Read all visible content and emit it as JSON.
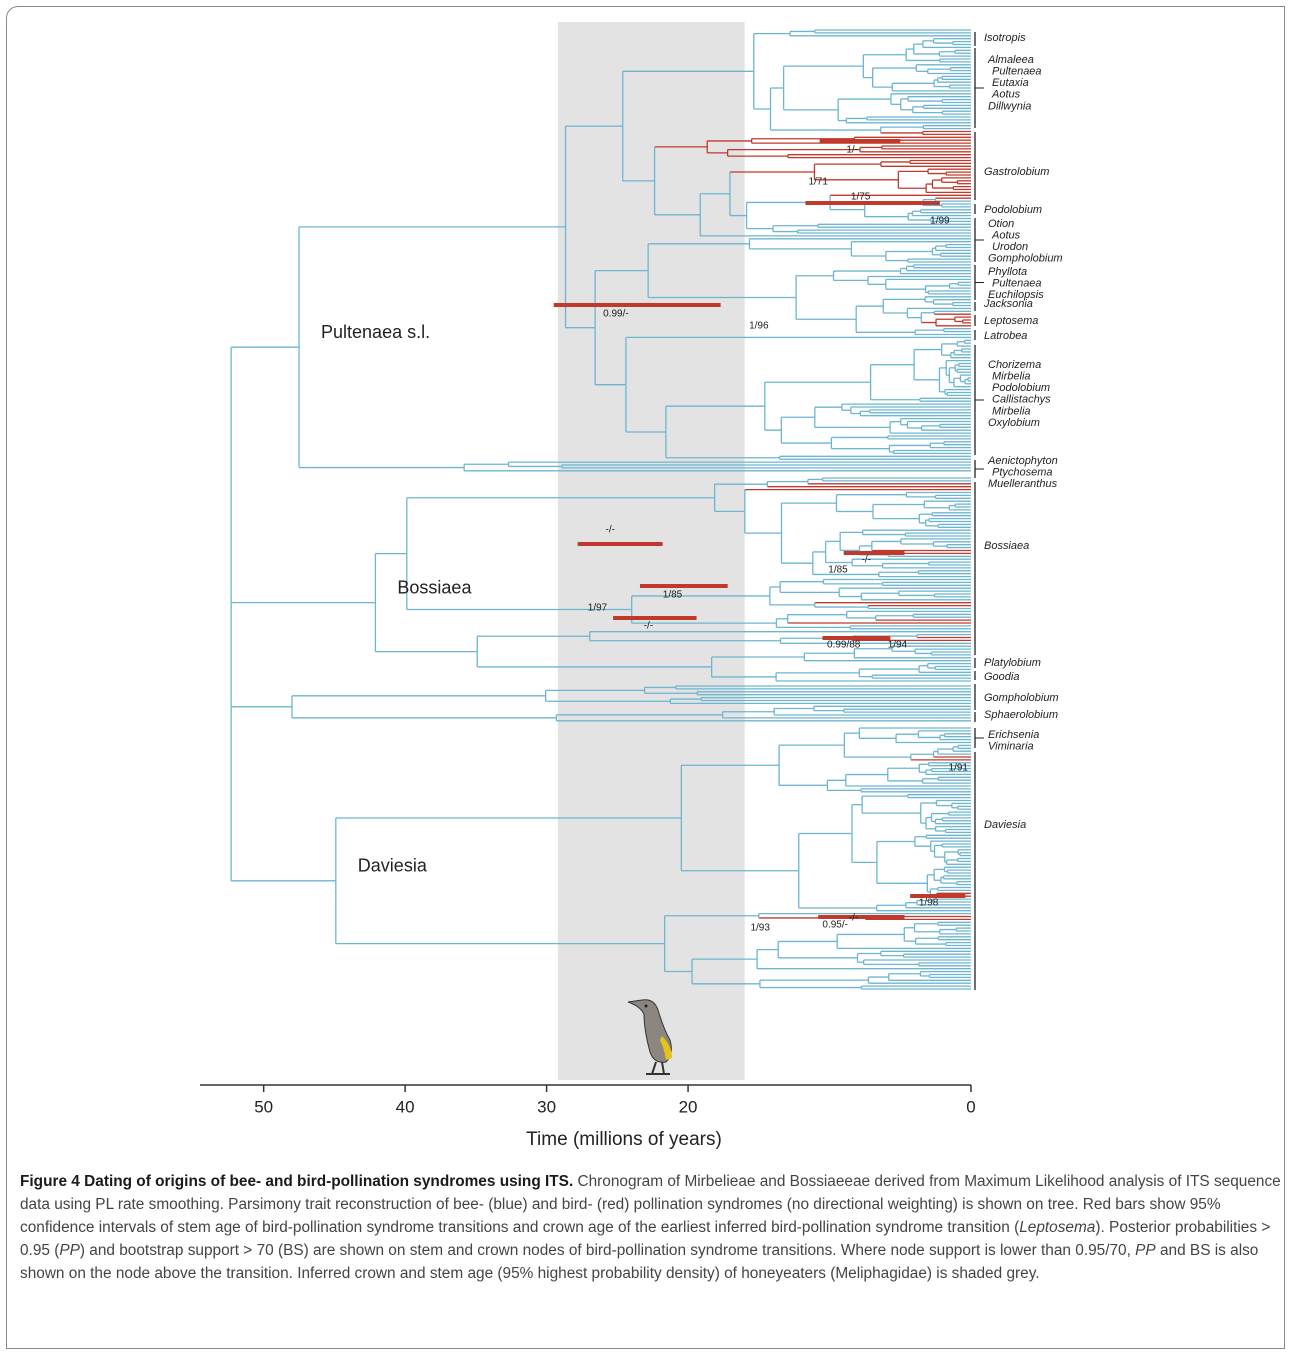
{
  "chart_data": {
    "type": "chronogram",
    "x_label": "Time (millions of years)",
    "xlim": [
      54.5,
      0
    ],
    "xticks": [
      50,
      40,
      30,
      20,
      0
    ],
    "shaded_interval": [
      29.2,
      16
    ],
    "root_age": 52.3,
    "clades": [
      {
        "name": "Pultenaea s.l.",
        "age": 47.5
      },
      {
        "name": "Bossiaea",
        "age": 42.1
      },
      {
        "name": null,
        "age": 48
      },
      {
        "name": "Daviesia",
        "age": 44.9
      }
    ],
    "taxa": [
      [
        "Isotropis"
      ],
      [
        "Almaleea",
        "Pultenaea",
        "Eutaxia",
        "Aotus",
        "Dillwynia"
      ],
      [
        "Gastrolobium"
      ],
      [
        "Podolobium"
      ],
      [
        "Otion",
        "Aotus",
        "Urodon",
        "Gompholobium"
      ],
      [
        "Phyllota",
        "Pultenaea",
        "Euchilopsis"
      ],
      [
        "Jacksonia"
      ],
      [
        "Leptosema"
      ],
      [
        "Latrobea"
      ],
      [
        "Chorizema",
        "Mirbelia",
        "Podolobium",
        "Callistachys",
        "Mirbelia",
        "Oxylobium"
      ],
      [
        "Aenictophyton",
        "Ptychosema",
        "Muelleranthus"
      ],
      [
        "Bossiaea"
      ],
      [
        "Platylobium"
      ],
      [
        "Goodia"
      ],
      [
        "Gompholobium"
      ],
      [
        "Sphaerolobium"
      ],
      [
        "Erichsenia",
        "Viminaria"
      ],
      [
        "Daviesia"
      ]
    ],
    "confidence_intervals": [
      [
        10.7,
        5.0
      ],
      [
        11.7,
        2.2
      ],
      [
        29.5,
        17.7
      ],
      [
        27.8,
        21.8
      ],
      [
        23.4,
        17.2
      ],
      [
        25.3,
        19.4
      ],
      [
        9.0,
        4.7
      ],
      [
        10.5,
        5.7
      ],
      [
        4.3,
        0.4
      ],
      [
        10.8,
        4.7
      ]
    ],
    "support": [
      {
        "label": "1/-",
        "age": 8.4
      },
      {
        "label": "1/71",
        "age": 10.8
      },
      {
        "label": "1/75",
        "age": 7.8
      },
      {
        "label": "1/99",
        "age": 2.2
      },
      {
        "label": "0.99/-",
        "age": 25.1
      },
      {
        "label": "1/96",
        "age": 15
      },
      {
        "label": "-/-",
        "age": 25.5
      },
      {
        "label": "1/85",
        "age": 9.4
      },
      {
        "label": "-/-",
        "age": 7.4
      },
      {
        "label": "1/85",
        "age": 21.1
      },
      {
        "label": "1/97",
        "age": 26.4
      },
      {
        "label": "-/-",
        "age": 22.8
      },
      {
        "label": "0.99/88",
        "age": 9
      },
      {
        "label": "1/94",
        "age": 5.2
      },
      {
        "label": "1/91",
        "age": 0.9
      },
      {
        "label": "1/98",
        "age": 3.0
      },
      {
        "label": "0.95/-",
        "age": 9.6
      },
      {
        "label": "-/-",
        "age": 8.3
      },
      {
        "label": "1/93",
        "age": 14.9
      }
    ]
  },
  "caption": {
    "title": "Figure 4 Dating of origins of bee- and bird-pollination syndromes using ITS.",
    "segments": [
      " Chronogram of Mirbelieae and Bossiaeeae derived from Maximum Likelihood analysis of ITS sequence data using PL rate smoothing. Parsimony trait reconstruction of bee- (blue) and bird- (red) pollination syndromes (no directional weighting) is shown on tree. Red bars show 95% confidence intervals of stem age of bird-pollination syndrome transitions and crown age of the earliest inferred bird-pollination syndrome transition (",
      {
        "text": "Leptosema",
        "italic": true
      },
      "). Posterior probabilities > 0.95 (",
      {
        "text": "PP",
        "italic": true
      },
      ") and bootstrap support > 70 (BS) are shown on stem and crown nodes of bird-pollination syndrome transitions. Where node support is lower than 0.95/70, ",
      {
        "text": "PP",
        "italic": true
      },
      " and BS is also shown on the node above the transition. Inferred crown and stem age (95% highest probability density) of honeyeaters (Meliphagidae) is shaded grey."
    ]
  }
}
